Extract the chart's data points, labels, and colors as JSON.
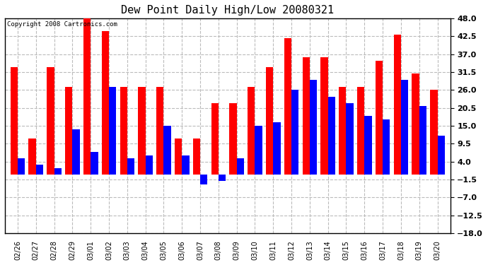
{
  "title": "Dew Point Daily High/Low 20080321",
  "copyright": "Copyright 2008 Cartronics.com",
  "dates": [
    "02/26",
    "02/27",
    "02/28",
    "02/29",
    "03/01",
    "03/02",
    "03/03",
    "03/04",
    "03/05",
    "03/06",
    "03/07",
    "03/08",
    "03/09",
    "03/10",
    "03/11",
    "03/12",
    "03/13",
    "03/14",
    "03/15",
    "03/16",
    "03/17",
    "03/18",
    "03/19",
    "03/20"
  ],
  "highs": [
    33,
    11,
    33,
    27,
    48,
    44,
    27,
    27,
    27,
    11,
    11,
    22,
    22,
    27,
    33,
    42,
    36,
    36,
    27,
    27,
    35,
    43,
    31,
    26
  ],
  "lows": [
    5,
    3,
    2,
    14,
    7,
    27,
    5,
    6,
    15,
    6,
    -3,
    -2,
    5,
    15,
    16,
    26,
    29,
    24,
    22,
    18,
    17,
    29,
    21,
    12
  ],
  "high_color": "#ff0000",
  "low_color": "#0000ff",
  "bg_color": "#ffffff",
  "grid_color": "#bbbbbb",
  "yticks": [
    48.0,
    42.5,
    37.0,
    31.5,
    26.0,
    20.5,
    15.0,
    9.5,
    4.0,
    -1.5,
    -7.0,
    -12.5,
    -18.0
  ],
  "ylim": [
    -18.0,
    48.0
  ],
  "bar_width": 0.4,
  "figwidth": 6.9,
  "figheight": 3.75,
  "dpi": 100
}
